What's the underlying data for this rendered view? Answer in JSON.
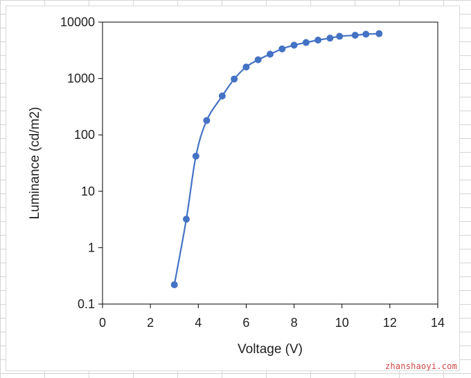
{
  "watermark": "zhanshaoyi.com",
  "chart_data": {
    "type": "scatter",
    "title": "",
    "xlabel": "Voltage (V)",
    "ylabel": "Luminance (cd/m2)",
    "xlim": [
      0,
      14
    ],
    "ylim": [
      0.1,
      10000
    ],
    "yscale": "log",
    "x_ticks": [
      0,
      2,
      4,
      6,
      8,
      10,
      12,
      14
    ],
    "y_ticks": [
      0.1,
      1,
      10,
      100,
      1000,
      10000
    ],
    "y_tick_labels": [
      "0.1",
      "1",
      "10",
      "100",
      "1000",
      "10000"
    ],
    "grid": false,
    "legend": "none",
    "smooth_line": true,
    "color": "#4472c4",
    "series": [
      {
        "x": [
          3.0,
          3.5,
          3.9,
          4.35,
          5.0,
          5.5,
          6.0,
          6.5,
          7.0,
          7.5,
          8.0,
          8.5,
          9.0,
          9.5,
          9.9,
          10.55,
          11.0,
          11.55
        ],
        "y": [
          0.22,
          3.2,
          42,
          180,
          490,
          980,
          1600,
          2150,
          2700,
          3350,
          3900,
          4350,
          4800,
          5200,
          5600,
          5850,
          6100,
          6250
        ]
      }
    ]
  }
}
